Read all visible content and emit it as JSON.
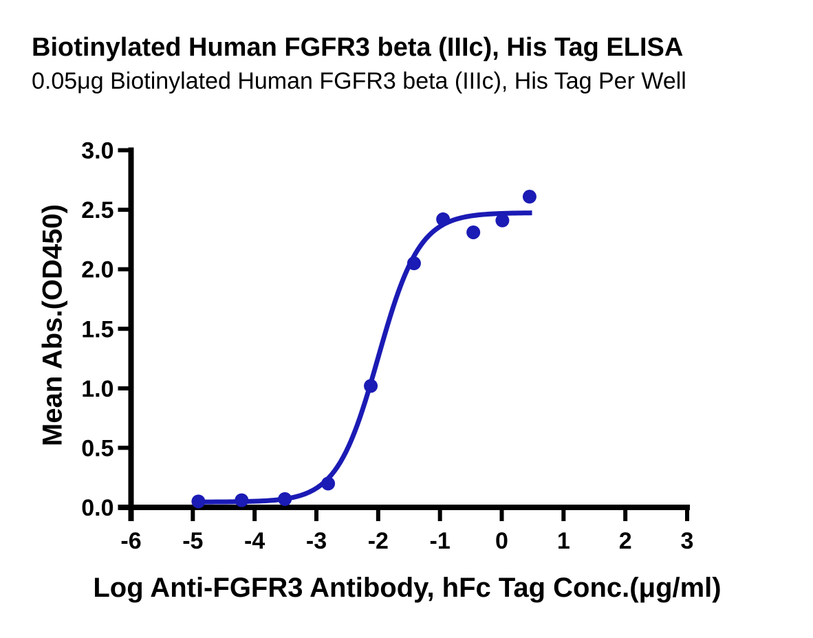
{
  "header": {
    "title": "Biotinylated Human FGFR3 beta (IIIc), His Tag ELISA",
    "subtitle": "0.05μg Biotinylated Human FGFR3 beta (IIIc), His Tag Per Well"
  },
  "style": {
    "accent_blue": "#1b1bb5",
    "axis_color": "#000000",
    "background": "#ffffff"
  },
  "chart_data": {
    "type": "scatter",
    "title": "Biotinylated Human FGFR3 beta (IIIc), His Tag ELISA",
    "subtitle": "0.05μg Biotinylated Human FGFR3 beta (IIIc), His Tag Per Well",
    "xlabel": "Log Anti-FGFR3 Antibody, hFc Tag Conc.(μg/ml)",
    "ylabel": "Mean Abs.(OD450)",
    "xlim": [
      -6,
      3
    ],
    "ylim": [
      0,
      3
    ],
    "x_ticks": [
      -6,
      -5,
      -4,
      -3,
      -2,
      -1,
      0,
      1,
      2,
      3
    ],
    "x_tick_labels": [
      "-6",
      "-5",
      "-4",
      "-3",
      "-2",
      "-1",
      "0",
      "1",
      "2",
      "3"
    ],
    "y_ticks": [
      0.0,
      0.5,
      1.0,
      1.5,
      2.0,
      2.5,
      3.0
    ],
    "y_tick_labels": [
      "0.0",
      "0.5",
      "1.0",
      "1.5",
      "2.0",
      "2.5",
      "3.0"
    ],
    "grid": false,
    "legend": "none",
    "series": [
      {
        "name": "Anti-FGFR3 Antibody, hFc Tag",
        "marker": "circle",
        "marker_color": "#1b1bb5",
        "line_color": "#1b1bb5",
        "x": [
          -4.91,
          -4.21,
          -3.51,
          -2.81,
          -2.12,
          -1.42,
          -0.95,
          -0.46,
          0.01,
          0.45
        ],
        "y": [
          0.05,
          0.06,
          0.07,
          0.2,
          1.02,
          2.05,
          2.42,
          2.31,
          2.41,
          2.61
        ],
        "fit_curve": {
          "model": "4PL",
          "bottom": 0.045,
          "top": 2.475,
          "log_ec50": -2.0,
          "hill": 1.3,
          "x_start": -4.91,
          "x_end": 0.49
        }
      }
    ]
  }
}
